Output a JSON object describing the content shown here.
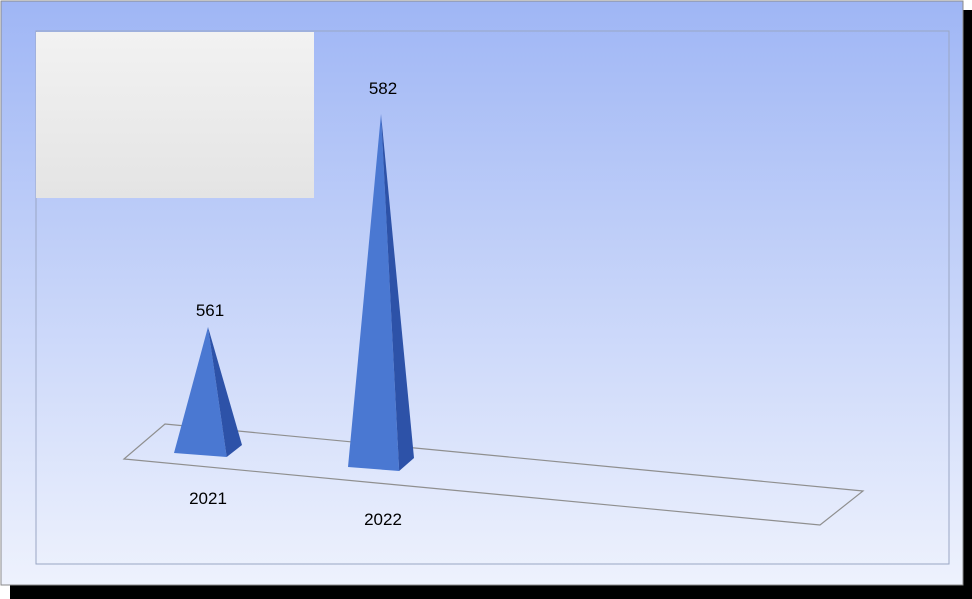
{
  "colors": {
    "background_top": "#9fb6f5",
    "background_bottom": "#eef2fd",
    "pyramid_front": "#4a78d2",
    "pyramid_side": "#2d52a8",
    "legend_fill": "#ededed",
    "border": "#000000"
  },
  "chart_data": {
    "type": "bar",
    "style": "3d-pyramid",
    "categories": [
      "2021",
      "2022"
    ],
    "values": [
      561,
      582
    ],
    "data_labels": [
      "561",
      "582"
    ],
    "title": "",
    "xlabel": "",
    "ylabel": "",
    "gridlines": false,
    "legend": "top-left",
    "legend_entries": []
  }
}
